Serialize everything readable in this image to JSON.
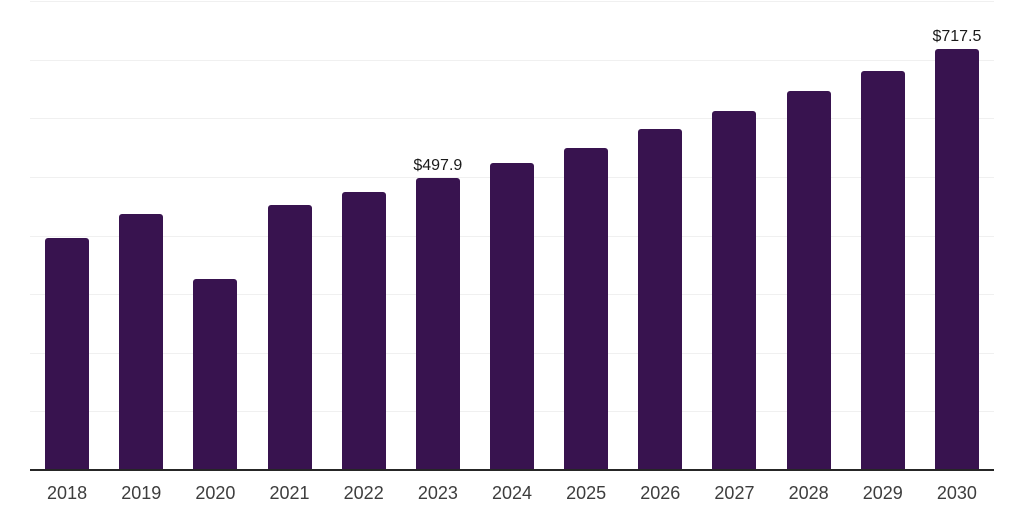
{
  "chart_data": {
    "type": "bar",
    "title": "",
    "xlabel": "",
    "ylabel": "",
    "categories": [
      "2018",
      "2019",
      "2020",
      "2021",
      "2022",
      "2023",
      "2024",
      "2025",
      "2026",
      "2027",
      "2028",
      "2029",
      "2030"
    ],
    "values": [
      396,
      436,
      325,
      452,
      475,
      497.9,
      523,
      550,
      581,
      612,
      646,
      680,
      717.5
    ],
    "data_labels": [
      {
        "category": "2023",
        "text": "$497.9"
      },
      {
        "category": "2030",
        "text": "$717.5"
      }
    ],
    "ylim": [
      0,
      800
    ],
    "grid": true,
    "gridline_step": 100,
    "y_tick_labels_visible": false,
    "legend_position": "none",
    "currency_prefix": "$"
  },
  "colors": {
    "bar": "#38134F",
    "grid": "#f0f0f0",
    "axis": "#262626",
    "tick_label": "#3d3d3d",
    "data_label": "#1a1a1a",
    "background": "#ffffff"
  }
}
